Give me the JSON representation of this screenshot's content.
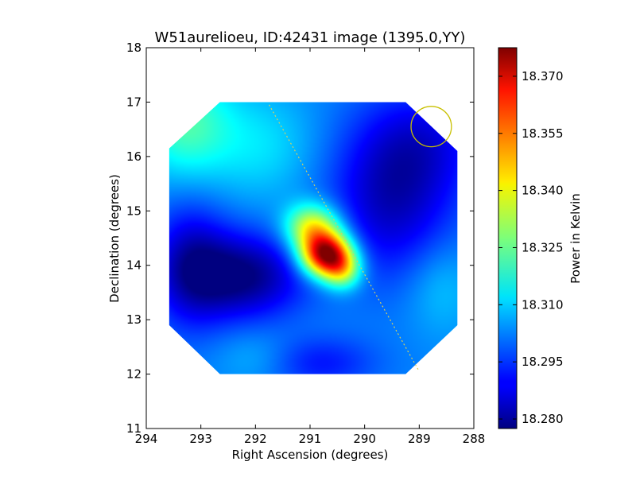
{
  "chart_data": {
    "type": "heatmap",
    "title": "W51aurelioeu, ID:42431 image (1395.0,YY)",
    "xlabel": "Right Ascension (degrees)",
    "ylabel": "Declination (degrees)",
    "xlim": [
      294,
      288
    ],
    "ylim": [
      11,
      18
    ],
    "x_ticks": [
      {
        "value": 294,
        "label": "294"
      },
      {
        "value": 293,
        "label": "293"
      },
      {
        "value": 292,
        "label": "292"
      },
      {
        "value": 291,
        "label": "291"
      },
      {
        "value": 290,
        "label": "290"
      },
      {
        "value": 289,
        "label": "289"
      },
      {
        "value": 288,
        "label": "288"
      }
    ],
    "y_ticks": [
      {
        "value": 11,
        "label": "11"
      },
      {
        "value": 12,
        "label": "12"
      },
      {
        "value": 13,
        "label": "13"
      },
      {
        "value": 14,
        "label": "14"
      },
      {
        "value": 15,
        "label": "15"
      },
      {
        "value": 16,
        "label": "16"
      },
      {
        "value": 17,
        "label": "17"
      },
      {
        "value": 18,
        "label": "18"
      }
    ],
    "colormap": "jet",
    "colorbar": {
      "label": "Power in Kelvin",
      "vmin": 18.2775,
      "vmax": 18.3775,
      "ticks": [
        {
          "value": 18.28,
          "label": "18.280"
        },
        {
          "value": 18.295,
          "label": "18.295"
        },
        {
          "value": 18.31,
          "label": "18.310"
        },
        {
          "value": 18.325,
          "label": "18.325"
        },
        {
          "value": 18.34,
          "label": "18.340"
        },
        {
          "value": 18.355,
          "label": "18.355"
        },
        {
          "value": 18.37,
          "label": "18.370"
        }
      ]
    },
    "image_extent": {
      "ra": [
        288.3,
        293.6
      ],
      "dec": [
        12.0,
        17.0
      ]
    },
    "footprint_polygon": [
      [
        292.65,
        17.0
      ],
      [
        289.25,
        17.0
      ],
      [
        288.3,
        16.1
      ],
      [
        288.3,
        12.9
      ],
      [
        289.25,
        12.0
      ],
      [
        292.65,
        12.0
      ],
      [
        293.58,
        12.9
      ],
      [
        293.58,
        16.15
      ]
    ],
    "background_level": 18.303,
    "sources": [
      {
        "ra": 290.7,
        "dec": 14.2,
        "peak": 18.375,
        "sigma_ra": 0.32,
        "sigma_dec": 0.28
      },
      {
        "ra": 290.95,
        "dec": 14.7,
        "peak": 18.34,
        "sigma_ra": 0.35,
        "sigma_dec": 0.3
      },
      {
        "ra": 290.4,
        "dec": 13.9,
        "peak": 18.33,
        "sigma_ra": 0.25,
        "sigma_dec": 0.25
      },
      {
        "ra": 292.2,
        "dec": 13.8,
        "peak": 18.278,
        "sigma_ra": 0.75,
        "sigma_dec": 0.55
      },
      {
        "ra": 293.2,
        "dec": 14.0,
        "peak": 18.285,
        "sigma_ra": 0.5,
        "sigma_dec": 0.8
      },
      {
        "ra": 289.5,
        "dec": 15.2,
        "peak": 18.284,
        "sigma_ra": 0.8,
        "sigma_dec": 1.0
      },
      {
        "ra": 288.9,
        "dec": 16.3,
        "peak": 18.292,
        "sigma_ra": 0.8,
        "sigma_dec": 0.7
      },
      {
        "ra": 290.8,
        "dec": 12.2,
        "peak": 18.292,
        "sigma_ra": 0.7,
        "sigma_dec": 0.35
      },
      {
        "ra": 293.3,
        "dec": 16.6,
        "peak": 18.322,
        "sigma_ra": 0.6,
        "sigma_dec": 0.7
      },
      {
        "ra": 291.9,
        "dec": 16.2,
        "peak": 18.312,
        "sigma_ra": 0.7,
        "sigma_dec": 0.7
      },
      {
        "ra": 288.6,
        "dec": 13.6,
        "peak": 18.31,
        "sigma_ra": 0.45,
        "sigma_dec": 0.6
      },
      {
        "ra": 292.0,
        "dec": 12.3,
        "peak": 18.308,
        "sigma_ra": 0.5,
        "sigma_dec": 0.35
      }
    ],
    "galactic_plane_line": {
      "points": [
        [
          291.75,
          16.95
        ],
        [
          289.0,
          12.05
        ]
      ],
      "color": "#d4d060"
    },
    "beam_circle": {
      "ra": 288.78,
      "dec": 16.55,
      "radius_deg": 0.37,
      "color": "#c8c000"
    }
  }
}
